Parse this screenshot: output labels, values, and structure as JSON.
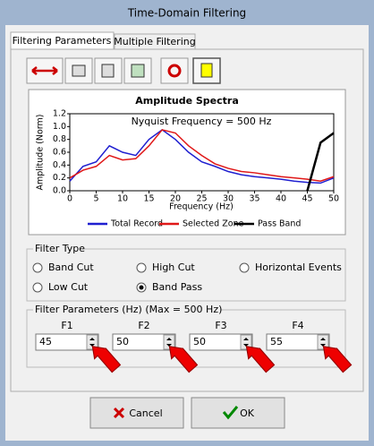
{
  "window": {
    "title": "Time-Domain Filtering"
  },
  "tabs": [
    "Filtering Parameters",
    "Multiple Filtering"
  ],
  "chart_data": {
    "type": "line",
    "title": "Amplitude Spectra",
    "annotation": "Nyquist Frequency = 500 Hz",
    "x_label": "Frequency (Hz)",
    "y_label": "Amplitude (Norm)",
    "x": [
      0,
      2.5,
      5,
      7.5,
      10,
      12.5,
      15,
      17.5,
      20,
      22.5,
      25,
      27.5,
      30,
      32.5,
      35,
      37.5,
      40,
      42.5,
      45,
      47.5,
      50
    ],
    "series": [
      {
        "name": "Total Record",
        "color": "#1f1fd0",
        "values": [
          0.15,
          0.38,
          0.45,
          0.7,
          0.6,
          0.55,
          0.8,
          0.95,
          0.8,
          0.6,
          0.45,
          0.38,
          0.3,
          0.25,
          0.22,
          0.2,
          0.18,
          0.15,
          0.13,
          0.12,
          0.2
        ]
      },
      {
        "name": "Selected Zone",
        "color": "#e01818",
        "values": [
          0.2,
          0.32,
          0.38,
          0.55,
          0.48,
          0.5,
          0.7,
          0.95,
          0.9,
          0.7,
          0.55,
          0.42,
          0.35,
          0.3,
          0.28,
          0.25,
          0.22,
          0.2,
          0.18,
          0.15,
          0.22
        ]
      },
      {
        "name": "Pass Band",
        "color": "#000000",
        "values": [
          null,
          null,
          null,
          null,
          null,
          null,
          null,
          null,
          null,
          null,
          null,
          null,
          null,
          null,
          null,
          null,
          null,
          null,
          0,
          0.75,
          0.9
        ]
      }
    ],
    "xlim": [
      0,
      50
    ],
    "xticks": [
      0,
      5,
      10,
      15,
      20,
      25,
      30,
      35,
      40,
      45,
      50
    ],
    "ylim": [
      0,
      1.2
    ],
    "yticks": [
      {
        "value": 0,
        "label": "0.0"
      },
      0.2,
      0.4,
      0.6,
      0.8,
      {
        "value": 1,
        "label": "1.0"
      },
      1.2
    ]
  },
  "filter_type": {
    "label": "Filter Type",
    "options": [
      {
        "label": "Band Cut",
        "checked": false
      },
      {
        "label": "High Cut",
        "checked": false
      },
      {
        "label": "Horizontal Events",
        "checked": false
      },
      {
        "label": "Low Cut",
        "checked": false
      },
      {
        "label": "Band Pass",
        "checked": true
      }
    ]
  },
  "filter_parameters": {
    "label": "Filter Parameters (Hz) (Max = 500 Hz)",
    "fields": [
      {
        "label": "F1",
        "value": 45
      },
      {
        "label": "F2",
        "value": 50
      },
      {
        "label": "F3",
        "value": 50
      },
      {
        "label": "F4",
        "value": 55
      }
    ]
  },
  "buttons": [
    "Cancel",
    "OK"
  ]
}
